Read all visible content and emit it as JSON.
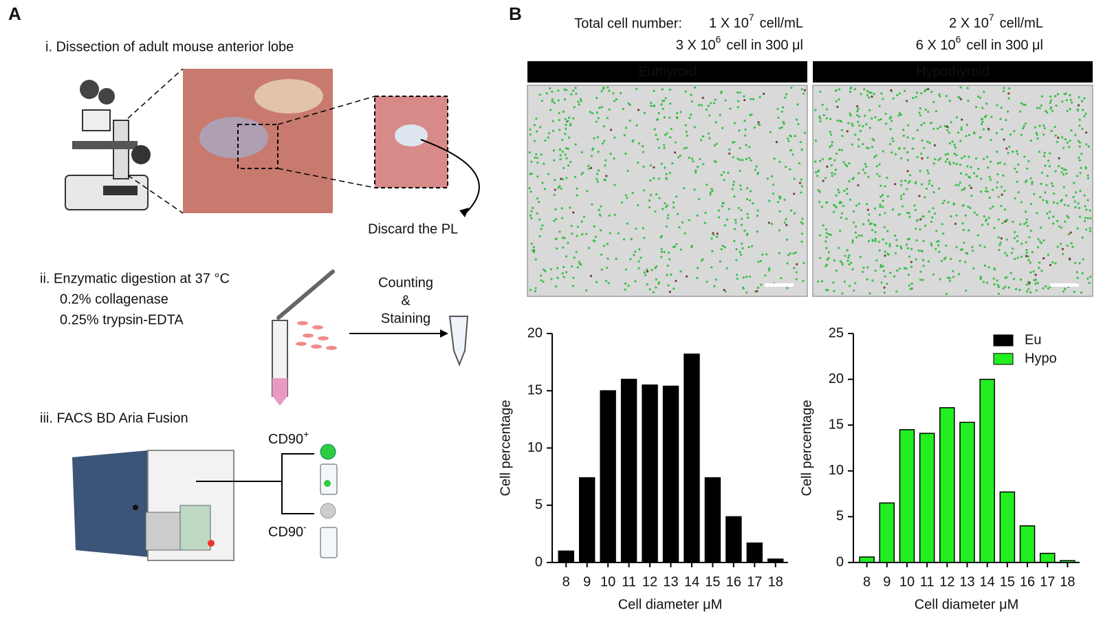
{
  "panel_a": {
    "label": "A",
    "step1": "i. Dissection of adult mouse anterior lobe",
    "discard": "Discard the PL",
    "step2": "ii. Enzymatic digestion at 37 °C",
    "step2_lines": [
      "0.2% collagenase",
      "0.25% trypsin-EDTA"
    ],
    "counting": [
      "Counting",
      "&",
      "Staining"
    ],
    "step3": "iii. FACS BD Aria Fusion",
    "cd90_pos": [
      "CD90",
      "+"
    ],
    "cd90_neg": [
      "CD90",
      "-"
    ]
  },
  "panel_b": {
    "label": "B",
    "total": "Total cell number:",
    "conditions": [
      {
        "name": "Euthyroid",
        "conc": [
          "1 X 10",
          "7",
          "cell/mL"
        ],
        "amount": [
          "3 X 10",
          "6",
          "cell in 300 μl"
        ]
      },
      {
        "name": "Hypothyroid",
        "conc": [
          "2 X 10",
          "7",
          "cell/mL"
        ],
        "amount": [
          "6 X 10",
          "6",
          "cell in 300 μl"
        ]
      }
    ]
  },
  "chart_data": [
    {
      "type": "bar",
      "categories": [
        "8",
        "9",
        "10",
        "11",
        "12",
        "13",
        "14",
        "15",
        "16",
        "17",
        "18"
      ],
      "series": [
        {
          "name": "Eu",
          "color": "#000000",
          "values": [
            1.0,
            7.4,
            15.0,
            16.0,
            15.5,
            15.4,
            18.2,
            7.4,
            4.0,
            1.7,
            0.3
          ]
        }
      ],
      "ylim": [
        0,
        20
      ],
      "yticks": [
        0,
        5,
        10,
        15,
        20
      ],
      "xlabel": "Cell diameter μM",
      "ylabel": "Cell percentage"
    },
    {
      "type": "bar",
      "categories": [
        "8",
        "9",
        "10",
        "11",
        "12",
        "13",
        "14",
        "15",
        "16",
        "17",
        "18"
      ],
      "series": [
        {
          "name": "Hypo",
          "color": "#22ee22",
          "values": [
            0.6,
            6.5,
            14.5,
            14.1,
            16.9,
            15.3,
            20.0,
            7.7,
            4.0,
            1.0,
            0.2
          ]
        }
      ],
      "ylim": [
        0,
        25
      ],
      "yticks": [
        0,
        5,
        10,
        15,
        20,
        25
      ],
      "xlabel": "Cell diameter μM",
      "ylabel": "Cell percentage",
      "legend": "top-right"
    }
  ]
}
